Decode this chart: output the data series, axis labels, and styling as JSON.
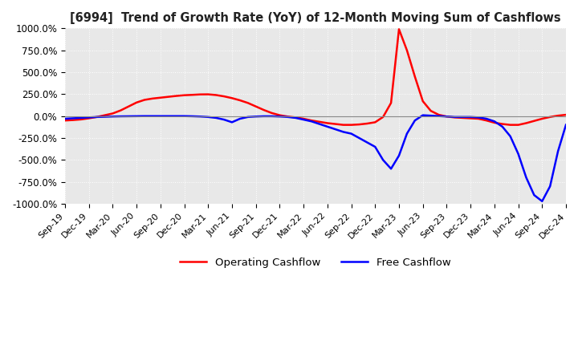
{
  "title": "[6994]  Trend of Growth Rate (YoY) of 12-Month Moving Sum of Cashflows",
  "ylim": [
    -1000,
    1000
  ],
  "yticks": [
    -1000,
    -750,
    -500,
    -250,
    0,
    250,
    500,
    750,
    1000
  ],
  "ytick_labels": [
    "-1000.0%",
    "-750.0%",
    "-500.0%",
    "-250.0%",
    "0.0%",
    "250.0%",
    "500.0%",
    "750.0%",
    "1000.0%"
  ],
  "background_color": "#ffffff",
  "plot_bg_color": "#e8e8e8",
  "grid_color": "#ffffff",
  "operating_color": "#ff0000",
  "free_color": "#0000ff",
  "legend_labels": [
    "Operating Cashflow",
    "Free Cashflow"
  ],
  "xtick_labels": [
    "Sep-19",
    "Dec-19",
    "Mar-20",
    "Jun-20",
    "Sep-20",
    "Dec-20",
    "Mar-21",
    "Jun-21",
    "Sep-21",
    "Dec-21",
    "Mar-22",
    "Jun-22",
    "Sep-22",
    "Dec-22",
    "Mar-23",
    "Jun-23",
    "Sep-23",
    "Dec-23",
    "Mar-24",
    "Jun-24",
    "Sep-24",
    "Dec-24"
  ],
  "operating_cashflow": [
    -50,
    -45,
    -38,
    -25,
    -10,
    10,
    30,
    65,
    110,
    155,
    185,
    200,
    210,
    220,
    230,
    238,
    242,
    247,
    248,
    240,
    225,
    205,
    180,
    150,
    110,
    70,
    35,
    10,
    -5,
    -15,
    -30,
    -50,
    -65,
    -80,
    -90,
    -100,
    -100,
    -95,
    -85,
    -70,
    -10,
    150,
    990,
    750,
    450,
    170,
    60,
    15,
    -5,
    -15,
    -20,
    -25,
    -30,
    -50,
    -75,
    -90,
    -100,
    -100,
    -80,
    -55,
    -30,
    -10,
    5,
    15
  ],
  "free_cashflow": [
    -30,
    -25,
    -20,
    -15,
    -10,
    -8,
    -5,
    -3,
    -2,
    -1,
    0,
    0,
    0,
    0,
    0,
    0,
    -2,
    -5,
    -10,
    -20,
    -40,
    -70,
    -30,
    -10,
    -5,
    -2,
    -2,
    -5,
    -10,
    -20,
    -40,
    -60,
    -90,
    -120,
    -150,
    -180,
    -200,
    -250,
    -300,
    -350,
    -500,
    -600,
    -450,
    -200,
    -50,
    10,
    5,
    0,
    -5,
    -10,
    -10,
    -10,
    -15,
    -30,
    -60,
    -120,
    -230,
    -430,
    -700,
    -900,
    -970,
    -800,
    -400,
    -100
  ]
}
